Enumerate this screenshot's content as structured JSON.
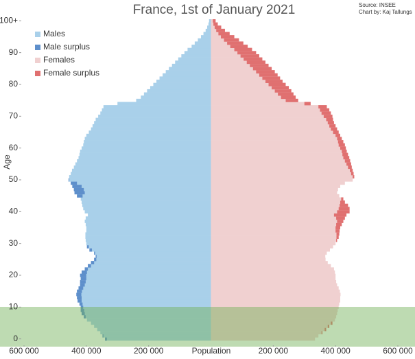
{
  "chart_data": {
    "type": "population-pyramid",
    "title": "France, 1st of January 2021",
    "source": "Source: INSEE",
    "credit": "Chart by: Kaj Tallungs",
    "xlabel": "Population",
    "ylabel": "Age",
    "x": [
      0,
      1,
      2,
      3,
      4,
      5,
      6,
      7,
      8,
      9,
      10,
      11,
      12,
      13,
      14,
      15,
      16,
      17,
      18,
      19,
      20,
      21,
      22,
      23,
      24,
      25,
      26,
      27,
      28,
      29,
      30,
      31,
      32,
      33,
      34,
      35,
      36,
      37,
      38,
      39,
      40,
      41,
      42,
      43,
      44,
      45,
      46,
      47,
      48,
      49,
      50,
      51,
      52,
      53,
      54,
      55,
      56,
      57,
      58,
      59,
      60,
      61,
      62,
      63,
      64,
      65,
      66,
      67,
      68,
      69,
      70,
      71,
      72,
      73,
      74,
      75,
      76,
      77,
      78,
      79,
      80,
      81,
      82,
      83,
      84,
      85,
      86,
      87,
      88,
      89,
      90,
      91,
      92,
      93,
      94,
      95,
      96,
      97,
      98,
      99,
      100
    ],
    "series": [
      {
        "name": "Males",
        "color": "#a9d0ea",
        "surplus_name": "Male surplus",
        "surplus_color": "#5e8fcb",
        "values": [
          340000,
          348000,
          355000,
          365000,
          375000,
          385000,
          398000,
          408000,
          415000,
          418000,
          418000,
          422000,
          428000,
          430000,
          432000,
          430000,
          425000,
          420000,
          420000,
          418000,
          420000,
          415000,
          405000,
          395000,
          385000,
          375000,
          370000,
          375000,
          390000,
          398000,
          400000,
          402000,
          403000,
          403000,
          400000,
          400000,
          402000,
          405000,
          402000,
          395000,
          405000,
          410000,
          413000,
          415000,
          418000,
          430000,
          438000,
          440000,
          445000,
          450000,
          457000,
          455000,
          450000,
          446000,
          440000,
          435000,
          430000,
          425000,
          422000,
          420000,
          415000,
          410000,
          408000,
          405000,
          400000,
          392000,
          385000,
          380000,
          375000,
          370000,
          362000,
          355000,
          350000,
          345000,
          300000,
          240000,
          225000,
          215000,
          205000,
          195000,
          185000,
          175000,
          165000,
          155000,
          145000,
          135000,
          125000,
          115000,
          105000,
          95000,
          85000,
          75000,
          62000,
          52000,
          42000,
          32000,
          24000,
          17000,
          12000,
          8000,
          6000
        ]
      },
      {
        "name": "Females",
        "color": "#f0d0d0",
        "surplus_name": "Female surplus",
        "surplus_color": "#e07070",
        "values": [
          334000,
          345000,
          358000,
          370000,
          380000,
          390000,
          398000,
          402000,
          405000,
          407000,
          410000,
          412000,
          415000,
          415000,
          416000,
          414000,
          410000,
          405000,
          402000,
          400000,
          400000,
          398000,
          395000,
          385000,
          375000,
          368000,
          367000,
          372000,
          382000,
          392000,
          400000,
          405000,
          410000,
          412000,
          413000,
          415000,
          420000,
          425000,
          430000,
          435000,
          445000,
          445000,
          440000,
          430000,
          425000,
          412000,
          405000,
          408000,
          415000,
          430000,
          455000,
          460000,
          458000,
          455000,
          452000,
          450000,
          447000,
          444000,
          440000,
          436000,
          433000,
          430000,
          425000,
          420000,
          415000,
          410000,
          405000,
          400000,
          395000,
          392000,
          390000,
          385000,
          380000,
          372000,
          320000,
          280000,
          272000,
          265000,
          258000,
          250000,
          240000,
          230000,
          222000,
          214000,
          205000,
          195000,
          185000,
          175000,
          165000,
          155000,
          145000,
          132000,
          118000,
          104000,
          90000,
          75000,
          60000,
          45000,
          33000,
          22000,
          15000
        ]
      }
    ],
    "xlim": [
      -600000,
      600000
    ],
    "xticks": [
      {
        "value": -600000,
        "label": "600 000"
      },
      {
        "value": -400000,
        "label": "400 000"
      },
      {
        "value": -200000,
        "label": "200 000"
      },
      {
        "value": 200000,
        "label": "200 000"
      },
      {
        "value": 400000,
        "label": "400 000"
      },
      {
        "value": 600000,
        "label": "600 000"
      }
    ],
    "ylim": [
      -0.5,
      100.5
    ],
    "yticks": [
      0,
      10,
      20,
      30,
      40,
      50,
      60,
      70,
      80,
      90,
      {
        "value": 100,
        "label": "100+"
      }
    ],
    "highlight_color": "rgba(110,175,85,0.45)"
  }
}
